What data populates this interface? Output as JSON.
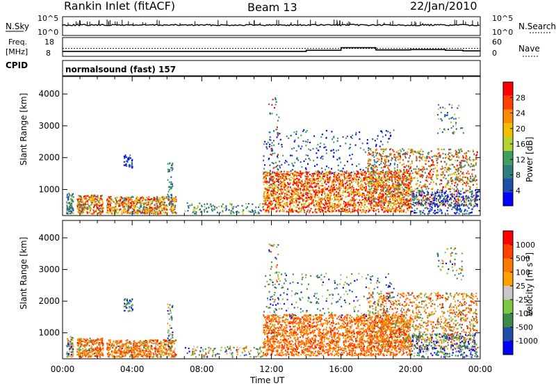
{
  "header": {
    "station": "Rankin Inlet (fitACF)",
    "beam": "Beam 13",
    "date": "22/Jan/2010"
  },
  "top_panel": {
    "left_label": "N.Sky",
    "right_label": "N.Search",
    "left_ticks": [
      "10^5",
      "10^0"
    ],
    "right_ticks": [
      "10^5",
      "10^0"
    ]
  },
  "freq_panel": {
    "left_label_line1": "Freq.",
    "left_label_line2": "[MHz]",
    "right_label": "Nave",
    "left_ticks": [
      "18",
      "8"
    ],
    "right_ticks": [
      "60",
      "0"
    ],
    "cpid_label": "CPID"
  },
  "cpid_text": "normalsound (fast) 157",
  "colors": {
    "power": [
      "#0000ff",
      "#1f4fa8",
      "#2f7d7d",
      "#3ea05c",
      "#b5d334",
      "#f0c000",
      "#ff8c00",
      "#ff4000",
      "#ff0000"
    ],
    "velocity": [
      "#0000ff",
      "#1f4fa8",
      "#3a8a4a",
      "#7cc840",
      "#c8c8c8",
      "#ffa000",
      "#ff7800",
      "#ff4000",
      "#ff0000"
    ]
  },
  "chart_data": [
    {
      "type": "line",
      "name": "N.Sky / N.Search",
      "ylim_label": [
        "10^0",
        "10^5"
      ]
    },
    {
      "type": "line",
      "name": "Freq. / Nave",
      "ylim": [
        8,
        18
      ],
      "x": [
        "00:00",
        "02:00",
        "04:00",
        "06:00",
        "08:00",
        "10:00",
        "12:00",
        "13:00",
        "14:00",
        "15:00",
        "16:00",
        "17:00",
        "18:00",
        "19:00",
        "20:00",
        "21:00",
        "22:00",
        "23:00",
        "24:00"
      ],
      "freq_mhz": [
        10.6,
        10.6,
        10.6,
        10.6,
        10.6,
        10.6,
        10.6,
        10.6,
        11.2,
        11.2,
        12.6,
        12.6,
        11.4,
        11.4,
        11.6,
        11.6,
        11.2,
        10.9,
        10.9
      ]
    },
    {
      "type": "heatmap",
      "title": "Power [dB]",
      "ylabel": "Slant Range [km]",
      "ylim": [
        180,
        4550
      ],
      "yticks": [
        "1000",
        "2000",
        "3000",
        "4000"
      ],
      "xticks": [
        "00:00",
        "04:00",
        "08:00",
        "12:00",
        "16:00",
        "20:00",
        "00:00"
      ],
      "xlabel": "Time UT",
      "colorbar": {
        "label": "Power [dB]",
        "ticks": [
          "4",
          "8",
          "12",
          "16",
          "20",
          "24",
          "28"
        ]
      }
    },
    {
      "type": "heatmap",
      "title": "Velocity [m s^-1]",
      "ylabel": "Slant Range [km]",
      "ylim": [
        180,
        4550
      ],
      "yticks": [
        "1000",
        "2000",
        "3000",
        "4000"
      ],
      "xticks": [
        "00:00",
        "04:00",
        "08:00",
        "12:00",
        "16:00",
        "20:00",
        "00:00"
      ],
      "xlabel": "Time UT",
      "colorbar": {
        "label": "Velocity",
        "unit": "[m s",
        "unit_sup": "-1",
        "unit_end": "]",
        "ticks": [
          "1000",
          "500",
          "100",
          "25",
          "-25",
          "-100",
          "-500",
          "-1000"
        ]
      }
    }
  ]
}
